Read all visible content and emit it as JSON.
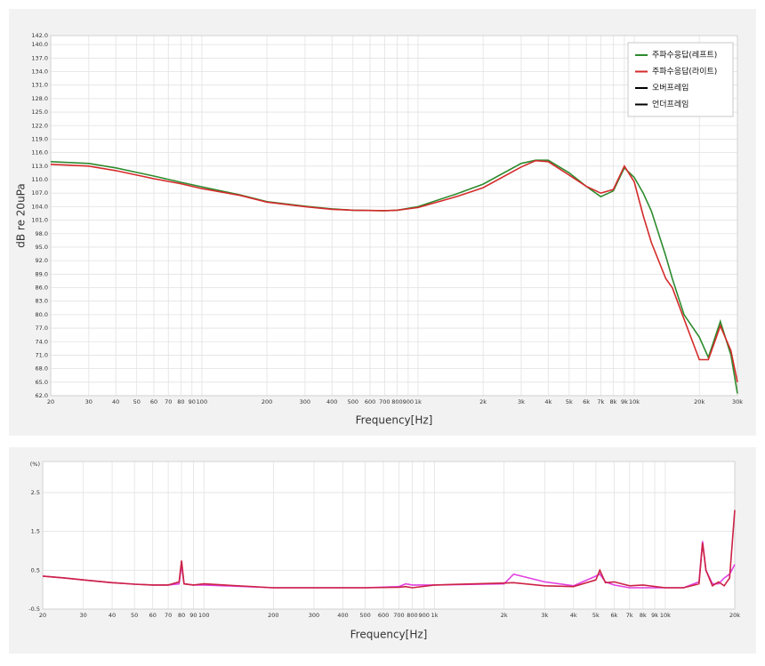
{
  "chart_data": [
    {
      "type": "line",
      "ylabel": "dB re 20uPa",
      "xlabel": "Frequency[Hz]",
      "xscale": "log",
      "grid": true,
      "legend": "upper right",
      "xlim": [
        20,
        30000
      ],
      "xticks": [
        20,
        30,
        40,
        50,
        60,
        70,
        80,
        90,
        100,
        200,
        300,
        400,
        500,
        600,
        700,
        800,
        900,
        {
          "value": 1000,
          "label": "1k"
        },
        {
          "value": 2000,
          "label": "2k"
        },
        {
          "value": 3000,
          "label": "3k"
        },
        {
          "value": 4000,
          "label": "4k"
        },
        {
          "value": 5000,
          "label": "5k"
        },
        {
          "value": 6000,
          "label": "6k"
        },
        {
          "value": 7000,
          "label": "7k"
        },
        {
          "value": 8000,
          "label": "8k"
        },
        {
          "value": 9000,
          "label": "9k"
        },
        {
          "value": 10000,
          "label": "10k"
        },
        {
          "value": 20000,
          "label": "20k"
        },
        {
          "value": 30000,
          "label": "30k"
        }
      ],
      "ylim": [
        62,
        142
      ],
      "yticks": [
        {
          "value": 62,
          "label": "62.0"
        },
        {
          "value": 65,
          "label": "65.0"
        },
        {
          "value": 68,
          "label": "68.0"
        },
        {
          "value": 71,
          "label": "71.0"
        },
        {
          "value": 74,
          "label": "74.0"
        },
        {
          "value": 77,
          "label": "77.0"
        },
        {
          "value": 80,
          "label": "80.0"
        },
        {
          "value": 83,
          "label": "83.0"
        },
        {
          "value": 86,
          "label": "86.0"
        },
        {
          "value": 89,
          "label": "89.0"
        },
        {
          "value": 92,
          "label": "92.0"
        },
        {
          "value": 95,
          "label": "95.0"
        },
        {
          "value": 98,
          "label": "98.0"
        },
        {
          "value": 101,
          "label": "101.0"
        },
        {
          "value": 104,
          "label": "104.0"
        },
        {
          "value": 107,
          "label": "107.0"
        },
        {
          "value": 110,
          "label": "110.0"
        },
        {
          "value": 113,
          "label": "113.0"
        },
        {
          "value": 116,
          "label": "116.0"
        },
        {
          "value": 119,
          "label": "119.0"
        },
        {
          "value": 122,
          "label": "122.0"
        },
        {
          "value": 125,
          "label": "125.0"
        },
        {
          "value": 128,
          "label": "128.0"
        },
        {
          "value": 131,
          "label": "131.0"
        },
        {
          "value": 134,
          "label": "134.0"
        },
        {
          "value": 137,
          "label": "137.0"
        },
        {
          "value": 140,
          "label": "140.0"
        },
        {
          "value": 142,
          "label": "142.0"
        }
      ],
      "x": [
        20,
        30,
        40,
        50,
        60,
        80,
        100,
        150,
        200,
        300,
        400,
        500,
        700,
        800,
        1000,
        1500,
        2000,
        3000,
        3500,
        4000,
        5000,
        6000,
        7000,
        8000,
        9000,
        10000,
        11000,
        12000,
        14000,
        15000,
        17000,
        20000,
        22000,
        25000,
        28000,
        30000
      ],
      "series": [
        {
          "name": "주파수응답(레프트)",
          "color": "#2e8b2e",
          "values": [
            114,
            113.6,
            112.6,
            111.6,
            110.8,
            109.4,
            108.4,
            106.6,
            105.1,
            104.1,
            103.5,
            103.2,
            103.1,
            103.2,
            104,
            106.8,
            109,
            113.6,
            114.3,
            114.3,
            111.5,
            108.5,
            106.2,
            107.5,
            112.6,
            110.5,
            107,
            103,
            93,
            88,
            80,
            75,
            70.5,
            78.5,
            71,
            62.5
          ]
        },
        {
          "name": "주파수응답(라이트)",
          "color": "#d42a2a",
          "values": [
            113.4,
            113,
            112,
            111,
            110.2,
            109.1,
            108,
            106.5,
            105,
            104,
            103.4,
            103.2,
            103.1,
            103.2,
            103.8,
            106.2,
            108.2,
            112.8,
            114.2,
            114,
            111,
            108.5,
            107,
            107.8,
            113,
            109.5,
            102,
            96,
            88,
            86,
            79,
            70,
            70,
            77.5,
            72,
            65
          ]
        },
        {
          "name": "오버프레임",
          "color": "#000000",
          "values": [
            null,
            null,
            null,
            null,
            null,
            null,
            null,
            null,
            null,
            null,
            null,
            null,
            null,
            null,
            null,
            null,
            null,
            null,
            null,
            null,
            null,
            null,
            null,
            null,
            null,
            null,
            null,
            null,
            null,
            null,
            null,
            null,
            null,
            null,
            null,
            null
          ]
        },
        {
          "name": "언더프레임",
          "color": "#000000",
          "values": [
            null,
            null,
            null,
            null,
            null,
            null,
            null,
            null,
            null,
            null,
            null,
            null,
            null,
            null,
            null,
            null,
            null,
            null,
            null,
            null,
            null,
            null,
            null,
            null,
            null,
            null,
            null,
            null,
            null,
            null,
            null,
            null,
            null,
            null,
            null,
            null
          ]
        }
      ]
    },
    {
      "type": "line",
      "ylabel": "(%)",
      "xlabel": "Frequency[Hz]",
      "xscale": "log",
      "grid": true,
      "xlim": [
        20,
        20000
      ],
      "xticks": [
        20,
        30,
        40,
        50,
        60,
        70,
        80,
        90,
        100,
        200,
        300,
        400,
        500,
        600,
        700,
        800,
        900,
        {
          "value": 1000,
          "label": "1k"
        },
        {
          "value": 2000,
          "label": "2k"
        },
        {
          "value": 3000,
          "label": "3k"
        },
        {
          "value": 4000,
          "label": "4k"
        },
        {
          "value": 5000,
          "label": "5k"
        },
        {
          "value": 6000,
          "label": "6k"
        },
        {
          "value": 7000,
          "label": "7k"
        },
        {
          "value": 8000,
          "label": "8k"
        },
        {
          "value": 9000,
          "label": "9k"
        },
        {
          "value": 10000,
          "label": "10k"
        },
        {
          "value": 20000,
          "label": "20k"
        }
      ],
      "ylim": [
        -0.5,
        3.3
      ],
      "yticks": [
        -0.5,
        0.5,
        1.5,
        2.5
      ],
      "x": [
        20,
        25,
        30,
        40,
        50,
        60,
        70,
        78,
        80,
        82,
        90,
        100,
        200,
        500,
        700,
        750,
        800,
        1000,
        2000,
        2200,
        3000,
        4000,
        5000,
        5200,
        5500,
        6000,
        7000,
        8000,
        10000,
        12000,
        14000,
        14500,
        15000,
        16000,
        17000,
        18000,
        19000,
        20000
      ],
      "series": [
        {
          "color": "#e040e0",
          "values": [
            0.35,
            0.3,
            0.25,
            0.18,
            0.14,
            0.12,
            0.12,
            0.15,
            0.65,
            0.15,
            0.12,
            0.12,
            0.05,
            0.05,
            0.08,
            0.15,
            0.12,
            0.12,
            0.15,
            0.4,
            0.2,
            0.1,
            0.35,
            0.4,
            0.2,
            0.12,
            0.05,
            0.05,
            0.05,
            0.05,
            0.2,
            1.25,
            0.5,
            0.15,
            0.15,
            0.3,
            0.4,
            0.65
          ]
        },
        {
          "color": "#cc2244",
          "values": [
            0.35,
            0.3,
            0.25,
            0.18,
            0.14,
            0.12,
            0.12,
            0.2,
            0.75,
            0.15,
            0.12,
            0.15,
            0.05,
            0.05,
            0.06,
            0.08,
            0.05,
            0.12,
            0.17,
            0.18,
            0.1,
            0.08,
            0.25,
            0.5,
            0.18,
            0.2,
            0.1,
            0.12,
            0.05,
            0.05,
            0.15,
            1.2,
            0.5,
            0.1,
            0.2,
            0.1,
            0.3,
            2.05
          ]
        }
      ]
    }
  ]
}
